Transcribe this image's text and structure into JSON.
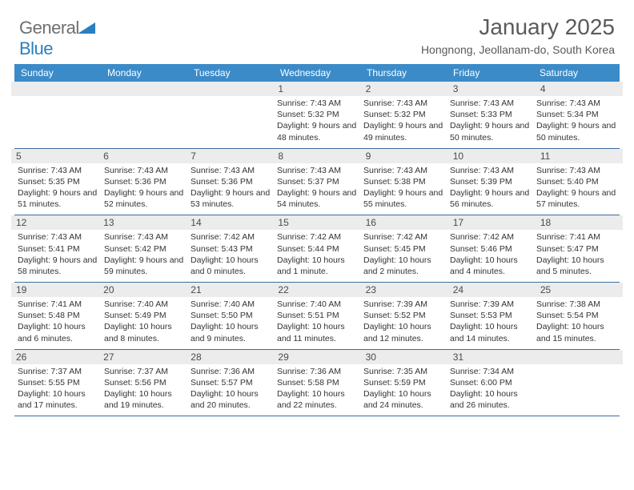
{
  "brand": {
    "name_a": "General",
    "name_b": "Blue"
  },
  "header": {
    "title": "January 2025",
    "location": "Hongnong, Jeollanam-do, South Korea"
  },
  "colors": {
    "header_bg": "#3b8bc8",
    "header_text": "#ffffff",
    "rule": "#3b6ea0",
    "daynum_bg": "#ececec",
    "text": "#333333",
    "brand_gray": "#6f6f6f",
    "brand_blue": "#2a7fbf",
    "page_bg": "#ffffff"
  },
  "calendar": {
    "day_names": [
      "Sunday",
      "Monday",
      "Tuesday",
      "Wednesday",
      "Thursday",
      "Friday",
      "Saturday"
    ],
    "weeks": [
      [
        {
          "num": "",
          "sunrise": "",
          "sunset": "",
          "daylight": ""
        },
        {
          "num": "",
          "sunrise": "",
          "sunset": "",
          "daylight": ""
        },
        {
          "num": "",
          "sunrise": "",
          "sunset": "",
          "daylight": ""
        },
        {
          "num": "1",
          "sunrise": "Sunrise: 7:43 AM",
          "sunset": "Sunset: 5:32 PM",
          "daylight": "Daylight: 9 hours and 48 minutes."
        },
        {
          "num": "2",
          "sunrise": "Sunrise: 7:43 AM",
          "sunset": "Sunset: 5:32 PM",
          "daylight": "Daylight: 9 hours and 49 minutes."
        },
        {
          "num": "3",
          "sunrise": "Sunrise: 7:43 AM",
          "sunset": "Sunset: 5:33 PM",
          "daylight": "Daylight: 9 hours and 50 minutes."
        },
        {
          "num": "4",
          "sunrise": "Sunrise: 7:43 AM",
          "sunset": "Sunset: 5:34 PM",
          "daylight": "Daylight: 9 hours and 50 minutes."
        }
      ],
      [
        {
          "num": "5",
          "sunrise": "Sunrise: 7:43 AM",
          "sunset": "Sunset: 5:35 PM",
          "daylight": "Daylight: 9 hours and 51 minutes."
        },
        {
          "num": "6",
          "sunrise": "Sunrise: 7:43 AM",
          "sunset": "Sunset: 5:36 PM",
          "daylight": "Daylight: 9 hours and 52 minutes."
        },
        {
          "num": "7",
          "sunrise": "Sunrise: 7:43 AM",
          "sunset": "Sunset: 5:36 PM",
          "daylight": "Daylight: 9 hours and 53 minutes."
        },
        {
          "num": "8",
          "sunrise": "Sunrise: 7:43 AM",
          "sunset": "Sunset: 5:37 PM",
          "daylight": "Daylight: 9 hours and 54 minutes."
        },
        {
          "num": "9",
          "sunrise": "Sunrise: 7:43 AM",
          "sunset": "Sunset: 5:38 PM",
          "daylight": "Daylight: 9 hours and 55 minutes."
        },
        {
          "num": "10",
          "sunrise": "Sunrise: 7:43 AM",
          "sunset": "Sunset: 5:39 PM",
          "daylight": "Daylight: 9 hours and 56 minutes."
        },
        {
          "num": "11",
          "sunrise": "Sunrise: 7:43 AM",
          "sunset": "Sunset: 5:40 PM",
          "daylight": "Daylight: 9 hours and 57 minutes."
        }
      ],
      [
        {
          "num": "12",
          "sunrise": "Sunrise: 7:43 AM",
          "sunset": "Sunset: 5:41 PM",
          "daylight": "Daylight: 9 hours and 58 minutes."
        },
        {
          "num": "13",
          "sunrise": "Sunrise: 7:43 AM",
          "sunset": "Sunset: 5:42 PM",
          "daylight": "Daylight: 9 hours and 59 minutes."
        },
        {
          "num": "14",
          "sunrise": "Sunrise: 7:42 AM",
          "sunset": "Sunset: 5:43 PM",
          "daylight": "Daylight: 10 hours and 0 minutes."
        },
        {
          "num": "15",
          "sunrise": "Sunrise: 7:42 AM",
          "sunset": "Sunset: 5:44 PM",
          "daylight": "Daylight: 10 hours and 1 minute."
        },
        {
          "num": "16",
          "sunrise": "Sunrise: 7:42 AM",
          "sunset": "Sunset: 5:45 PM",
          "daylight": "Daylight: 10 hours and 2 minutes."
        },
        {
          "num": "17",
          "sunrise": "Sunrise: 7:42 AM",
          "sunset": "Sunset: 5:46 PM",
          "daylight": "Daylight: 10 hours and 4 minutes."
        },
        {
          "num": "18",
          "sunrise": "Sunrise: 7:41 AM",
          "sunset": "Sunset: 5:47 PM",
          "daylight": "Daylight: 10 hours and 5 minutes."
        }
      ],
      [
        {
          "num": "19",
          "sunrise": "Sunrise: 7:41 AM",
          "sunset": "Sunset: 5:48 PM",
          "daylight": "Daylight: 10 hours and 6 minutes."
        },
        {
          "num": "20",
          "sunrise": "Sunrise: 7:40 AM",
          "sunset": "Sunset: 5:49 PM",
          "daylight": "Daylight: 10 hours and 8 minutes."
        },
        {
          "num": "21",
          "sunrise": "Sunrise: 7:40 AM",
          "sunset": "Sunset: 5:50 PM",
          "daylight": "Daylight: 10 hours and 9 minutes."
        },
        {
          "num": "22",
          "sunrise": "Sunrise: 7:40 AM",
          "sunset": "Sunset: 5:51 PM",
          "daylight": "Daylight: 10 hours and 11 minutes."
        },
        {
          "num": "23",
          "sunrise": "Sunrise: 7:39 AM",
          "sunset": "Sunset: 5:52 PM",
          "daylight": "Daylight: 10 hours and 12 minutes."
        },
        {
          "num": "24",
          "sunrise": "Sunrise: 7:39 AM",
          "sunset": "Sunset: 5:53 PM",
          "daylight": "Daylight: 10 hours and 14 minutes."
        },
        {
          "num": "25",
          "sunrise": "Sunrise: 7:38 AM",
          "sunset": "Sunset: 5:54 PM",
          "daylight": "Daylight: 10 hours and 15 minutes."
        }
      ],
      [
        {
          "num": "26",
          "sunrise": "Sunrise: 7:37 AM",
          "sunset": "Sunset: 5:55 PM",
          "daylight": "Daylight: 10 hours and 17 minutes."
        },
        {
          "num": "27",
          "sunrise": "Sunrise: 7:37 AM",
          "sunset": "Sunset: 5:56 PM",
          "daylight": "Daylight: 10 hours and 19 minutes."
        },
        {
          "num": "28",
          "sunrise": "Sunrise: 7:36 AM",
          "sunset": "Sunset: 5:57 PM",
          "daylight": "Daylight: 10 hours and 20 minutes."
        },
        {
          "num": "29",
          "sunrise": "Sunrise: 7:36 AM",
          "sunset": "Sunset: 5:58 PM",
          "daylight": "Daylight: 10 hours and 22 minutes."
        },
        {
          "num": "30",
          "sunrise": "Sunrise: 7:35 AM",
          "sunset": "Sunset: 5:59 PM",
          "daylight": "Daylight: 10 hours and 24 minutes."
        },
        {
          "num": "31",
          "sunrise": "Sunrise: 7:34 AM",
          "sunset": "Sunset: 6:00 PM",
          "daylight": "Daylight: 10 hours and 26 minutes."
        },
        {
          "num": "",
          "sunrise": "",
          "sunset": "",
          "daylight": ""
        }
      ]
    ]
  }
}
